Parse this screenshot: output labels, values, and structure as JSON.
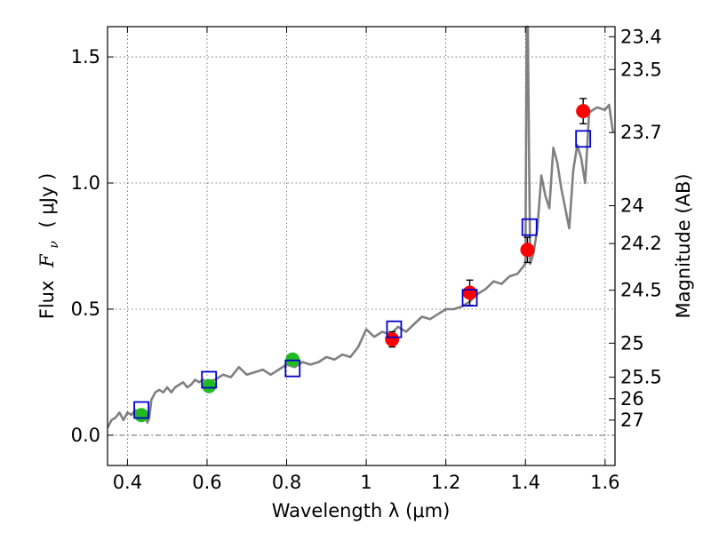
{
  "chart_data": {
    "type": "scatter",
    "xlabel": "Wavelength  λ (μm)",
    "ylabel_parts": {
      "prefix": "Flux",
      "symbol": "F",
      "subscript": "ν",
      "unit": "( μJy )"
    },
    "ylabel_right": "Magnitude (AB)",
    "xlim": [
      0.35,
      1.625
    ],
    "ylim": [
      -0.12,
      1.62
    ],
    "grid": true,
    "x_ticks": [
      0.4,
      0.6,
      0.8,
      1.0,
      1.2,
      1.4,
      1.6
    ],
    "x_tick_labels": [
      "0.4",
      "0.6",
      "0.8",
      "1",
      "1.2",
      "1.4",
      "1.6"
    ],
    "y_ticks": [
      0.0,
      0.5,
      1.0,
      1.5
    ],
    "y_tick_labels": [
      "0.0",
      "0.5",
      "1.0",
      "1.5"
    ],
    "right_ticks": [
      {
        "label": "23.4",
        "flux": 1.58
      },
      {
        "label": "23.5",
        "flux": 1.45
      },
      {
        "label": "23.7",
        "flux": 1.2
      },
      {
        "label": "24",
        "flux": 0.91
      },
      {
        "label": "24.2",
        "flux": 0.76
      },
      {
        "label": "24.5",
        "flux": 0.575
      },
      {
        "label": "25",
        "flux": 0.365
      },
      {
        "label": "25.5",
        "flux": 0.23
      },
      {
        "label": "26",
        "flux": 0.145
      },
      {
        "label": "27",
        "flux": 0.06
      }
    ],
    "model_spectrum": {
      "color": "#808080",
      "x": [
        0.35,
        0.36,
        0.37,
        0.38,
        0.39,
        0.4,
        0.41,
        0.42,
        0.43,
        0.44,
        0.45,
        0.455,
        0.46,
        0.47,
        0.48,
        0.49,
        0.5,
        0.51,
        0.52,
        0.53,
        0.54,
        0.55,
        0.56,
        0.57,
        0.58,
        0.59,
        0.6,
        0.62,
        0.64,
        0.66,
        0.68,
        0.7,
        0.72,
        0.74,
        0.76,
        0.78,
        0.8,
        0.82,
        0.84,
        0.86,
        0.88,
        0.9,
        0.92,
        0.94,
        0.96,
        0.98,
        1.0,
        1.02,
        1.04,
        1.06,
        1.08,
        1.1,
        1.12,
        1.14,
        1.16,
        1.18,
        1.2,
        1.22,
        1.24,
        1.26,
        1.28,
        1.3,
        1.32,
        1.34,
        1.36,
        1.38,
        1.39,
        1.4,
        1.403,
        1.406,
        1.409,
        1.412,
        1.42,
        1.43,
        1.44,
        1.45,
        1.46,
        1.47,
        1.48,
        1.49,
        1.5,
        1.51,
        1.52,
        1.53,
        1.54,
        1.55,
        1.56,
        1.58,
        1.6,
        1.61,
        1.62
      ],
      "y": [
        0.03,
        0.06,
        0.07,
        0.09,
        0.06,
        0.09,
        0.08,
        0.1,
        0.09,
        0.1,
        0.05,
        0.07,
        0.14,
        0.17,
        0.18,
        0.17,
        0.19,
        0.17,
        0.19,
        0.2,
        0.21,
        0.19,
        0.2,
        0.22,
        0.21,
        0.22,
        0.21,
        0.22,
        0.24,
        0.23,
        0.27,
        0.24,
        0.25,
        0.26,
        0.24,
        0.26,
        0.28,
        0.27,
        0.29,
        0.28,
        0.29,
        0.31,
        0.3,
        0.32,
        0.31,
        0.35,
        0.42,
        0.39,
        0.41,
        0.4,
        0.43,
        0.41,
        0.44,
        0.47,
        0.46,
        0.48,
        0.5,
        0.5,
        0.51,
        0.53,
        0.56,
        0.58,
        0.61,
        0.6,
        0.63,
        0.64,
        0.66,
        0.68,
        1.62,
        1.62,
        1.1,
        0.68,
        0.72,
        0.82,
        1.03,
        0.95,
        0.9,
        1.14,
        1.08,
        0.98,
        0.9,
        0.82,
        1.05,
        1.15,
        1.1,
        1.0,
        1.28,
        1.3,
        1.29,
        1.31,
        1.2
      ],
      "gap_x": [
        1.44,
        1.5
      ]
    },
    "series": [
      {
        "marker": "circle",
        "color": "#22bb22",
        "points": [
          {
            "x": 0.435,
            "y": 0.08,
            "err": 0.02
          },
          {
            "x": 0.605,
            "y": 0.195,
            "err": 0.02
          },
          {
            "x": 0.815,
            "y": 0.3,
            "err": 0.02
          }
        ]
      },
      {
        "marker": "circle",
        "color": "#ff0000",
        "points": [
          {
            "x": 1.065,
            "y": 0.38,
            "err": 0.03
          },
          {
            "x": 1.26,
            "y": 0.565,
            "err": 0.05
          },
          {
            "x": 1.405,
            "y": 0.735,
            "err": 0.05
          },
          {
            "x": 1.545,
            "y": 1.285,
            "err": 0.05
          }
        ]
      },
      {
        "marker": "square",
        "color": "#0000cc",
        "points": [
          {
            "x": 0.435,
            "y": 0.1
          },
          {
            "x": 0.605,
            "y": 0.22
          },
          {
            "x": 0.815,
            "y": 0.265
          },
          {
            "x": 1.07,
            "y": 0.42
          },
          {
            "x": 1.26,
            "y": 0.545
          },
          {
            "x": 1.41,
            "y": 0.825
          },
          {
            "x": 1.545,
            "y": 1.175
          }
        ]
      }
    ],
    "zero_line": {
      "y": 0.0,
      "style": "dashdot"
    }
  }
}
